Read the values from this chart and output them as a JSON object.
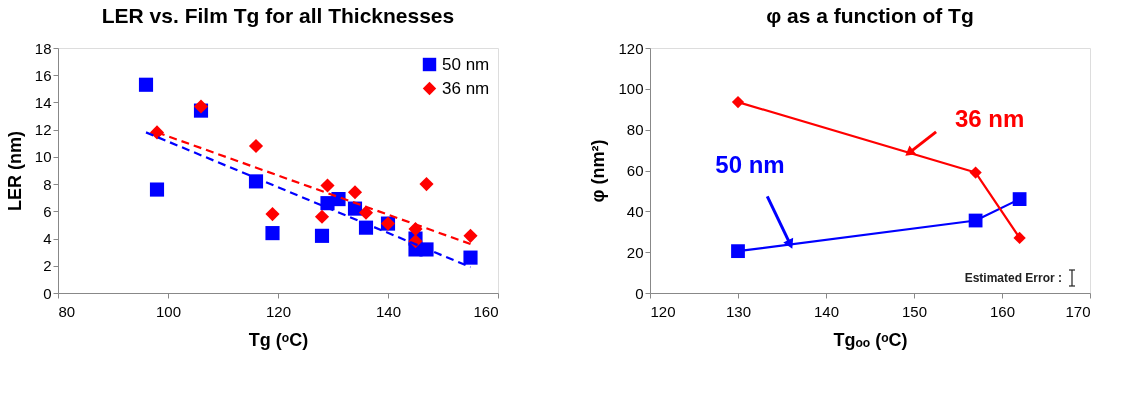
{
  "chart_data": [
    {
      "type": "scatter",
      "title": "LER vs. Film Tg for all Thicknesses",
      "xlabel": "Tg (ᵒC)",
      "ylabel": "LER (nm)",
      "xlim": [
        80,
        160
      ],
      "xticks": [
        80,
        100,
        120,
        140,
        160
      ],
      "ylim": [
        0,
        18
      ],
      "yticks": [
        0,
        2,
        4,
        6,
        8,
        10,
        12,
        14,
        16,
        18
      ],
      "grid": false,
      "legend": "top right",
      "series": [
        {
          "name": "50 nm",
          "marker": "square",
          "color": "#0000ff",
          "x": [
            96,
            98,
            106,
            116,
            119,
            128,
            129,
            131,
            134,
            136,
            140,
            145,
            145,
            147,
            155
          ],
          "values": [
            15.3,
            7.6,
            13.4,
            8.2,
            4.4,
            4.2,
            6.6,
            6.9,
            6.2,
            4.8,
            5.1,
            4.0,
            3.2,
            3.2,
            2.6
          ]
        },
        {
          "name": "36 nm",
          "marker": "diamond",
          "color": "#ff0000",
          "x": [
            98,
            106,
            116,
            119,
            128,
            129,
            134,
            136,
            140,
            145,
            145,
            147,
            155
          ],
          "values": [
            11.8,
            13.7,
            10.8,
            5.8,
            5.6,
            7.9,
            7.4,
            5.9,
            5.1,
            4.7,
            3.8,
            8.0,
            4.2
          ]
        },
        {
          "type": "line",
          "line_style": "dashed",
          "color": "#0000ff",
          "x": [
            96,
            155
          ],
          "values": [
            11.8,
            1.9
          ]
        },
        {
          "type": "line",
          "line_style": "dashed",
          "color": "#ff0000",
          "x": [
            98,
            155
          ],
          "values": [
            11.8,
            3.6
          ]
        }
      ]
    },
    {
      "type": "line",
      "title": "φ as a function of Tg",
      "xlabel": "Tgₒₒ (ᵒC)",
      "ylabel": "φ (nm²)",
      "xlim": [
        120,
        170
      ],
      "xticks": [
        120,
        130,
        140,
        150,
        160,
        170
      ],
      "ylim": [
        0,
        120
      ],
      "yticks": [
        0,
        20,
        40,
        60,
        80,
        100,
        120
      ],
      "grid": false,
      "legend": false,
      "annotations": [
        "Estimated Error :"
      ],
      "series": [
        {
          "name": "50 nm",
          "marker": "square",
          "color": "#0000ff",
          "x": [
            130,
            157,
            162
          ],
          "values": [
            20.5,
            35.5,
            46
          ]
        },
        {
          "name": "36 nm",
          "marker": "diamond",
          "color": "#ff0000",
          "x": [
            130,
            157,
            162
          ],
          "values": [
            93.5,
            59,
            27
          ]
        }
      ]
    }
  ]
}
